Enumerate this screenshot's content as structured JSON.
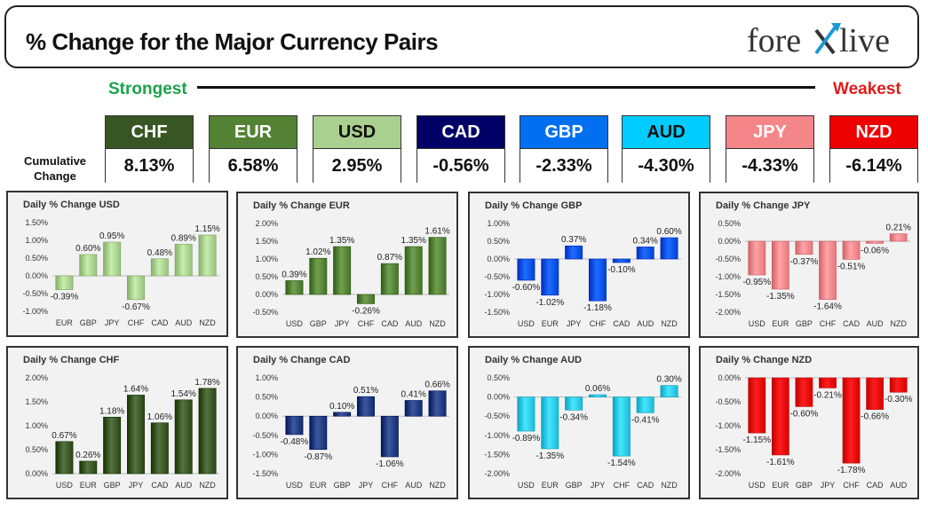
{
  "header": {
    "title": "% Change for the Major Currency Pairs",
    "logo_text_left": "fore",
    "logo_text_right": "live"
  },
  "ranking": {
    "strongest_label": "Strongest",
    "weakest_label": "Weakest",
    "cumulative_label_line1": "Cumulative",
    "cumulative_label_line2": "Change",
    "currencies": [
      {
        "code": "CHF",
        "value": "8.13%",
        "color": "#375623",
        "text": "#ffffff"
      },
      {
        "code": "EUR",
        "value": "6.58%",
        "color": "#548235",
        "text": "#ffffff"
      },
      {
        "code": "USD",
        "value": "2.95%",
        "color": "#a9d08e",
        "text": "#111111"
      },
      {
        "code": "CAD",
        "value": "-0.56%",
        "color": "#000066",
        "text": "#ffffff"
      },
      {
        "code": "GBP",
        "value": "-2.33%",
        "color": "#0070f0",
        "text": "#ffffff"
      },
      {
        "code": "AUD",
        "value": "-4.30%",
        "color": "#00ccff",
        "text": "#111111"
      },
      {
        "code": "JPY",
        "value": "-4.33%",
        "color": "#f4868a",
        "text": "#ffffff"
      },
      {
        "code": "NZD",
        "value": "-6.14%",
        "color": "#ee0000",
        "text": "#ffffff"
      }
    ]
  },
  "chart_data": [
    {
      "type": "bar",
      "title": "Daily % Change USD",
      "categories": [
        "EUR",
        "GBP",
        "JPY",
        "CHF",
        "CAD",
        "AUD",
        "NZD"
      ],
      "values": [
        -0.39,
        0.6,
        0.95,
        -0.67,
        0.48,
        0.89,
        1.15
      ],
      "labels": [
        "-0.39%",
        "0.60%",
        "0.95%",
        "-0.67%",
        "0.48%",
        "0.89%",
        "1.15%"
      ],
      "ylim": [
        -1.0,
        1.5
      ],
      "yticks": [
        -1.0,
        -0.5,
        0,
        0.5,
        1.0,
        1.5
      ],
      "yticklabels": [
        "-1.00%",
        "-0.50%",
        "0.00%",
        "0.50%",
        "1.00%",
        "1.50%"
      ],
      "bar_color": "#a9d08e"
    },
    {
      "type": "bar",
      "title": "Daily % Change EUR",
      "categories": [
        "USD",
        "GBP",
        "JPY",
        "CHF",
        "CAD",
        "AUD",
        "NZD"
      ],
      "values": [
        0.39,
        1.02,
        1.35,
        -0.26,
        0.87,
        1.35,
        1.61
      ],
      "labels": [
        "0.39%",
        "1.02%",
        "1.35%",
        "-0.26%",
        "0.87%",
        "1.35%",
        "1.61%"
      ],
      "ylim": [
        -0.5,
        2.0
      ],
      "yticks": [
        -0.5,
        0,
        0.5,
        1.0,
        1.5,
        2.0
      ],
      "yticklabels": [
        "-0.50%",
        "0.00%",
        "0.50%",
        "1.00%",
        "1.50%",
        "2.00%"
      ],
      "bar_color": "#548235"
    },
    {
      "type": "bar",
      "title": "Daily % Change GBP",
      "categories": [
        "USD",
        "EUR",
        "JPY",
        "CHF",
        "CAD",
        "AUD",
        "NZD"
      ],
      "values": [
        -0.6,
        -1.02,
        0.37,
        -1.18,
        -0.1,
        0.34,
        0.6
      ],
      "labels": [
        "-0.60%",
        "-1.02%",
        "0.37%",
        "-1.18%",
        "-0.10%",
        "0.34%",
        "0.60%"
      ],
      "ylim": [
        -1.5,
        1.0
      ],
      "yticks": [
        -1.5,
        -1.0,
        -0.5,
        0,
        0.5,
        1.0
      ],
      "yticklabels": [
        "-1.50%",
        "-1.00%",
        "-0.50%",
        "0.00%",
        "0.50%",
        "1.00%"
      ],
      "bar_color": "#0050e6"
    },
    {
      "type": "bar",
      "title": "Daily % Change JPY",
      "categories": [
        "USD",
        "EUR",
        "GBP",
        "CHF",
        "CAD",
        "AUD",
        "NZD"
      ],
      "values": [
        -0.95,
        -1.35,
        -0.37,
        -1.64,
        -0.51,
        -0.06,
        0.21
      ],
      "labels": [
        "-0.95%",
        "-1.35%",
        "-0.37%",
        "-1.64%",
        "-0.51%",
        "-0.06%",
        "0.21%"
      ],
      "ylim": [
        -2.0,
        0.5
      ],
      "yticks": [
        -2.0,
        -1.5,
        -1.0,
        -0.5,
        0,
        0.5
      ],
      "yticklabels": [
        "-2.00%",
        "-1.50%",
        "-1.00%",
        "-0.50%",
        "0.00%",
        "0.50%"
      ],
      "bar_color": "#f4868a"
    },
    {
      "type": "bar",
      "title": "Daily % Change CHF",
      "categories": [
        "USD",
        "EUR",
        "GBP",
        "JPY",
        "CAD",
        "AUD",
        "NZD"
      ],
      "values": [
        0.67,
        0.26,
        1.18,
        1.64,
        1.06,
        1.54,
        1.78
      ],
      "labels": [
        "0.67%",
        "0.26%",
        "1.18%",
        "1.64%",
        "1.06%",
        "1.54%",
        "1.78%"
      ],
      "ylim": [
        0,
        2.0
      ],
      "yticks": [
        0,
        0.5,
        1.0,
        1.5,
        2.0
      ],
      "yticklabels": [
        "0.00%",
        "0.50%",
        "1.00%",
        "1.50%",
        "2.00%"
      ],
      "bar_color": "#375623"
    },
    {
      "type": "bar",
      "title": "Daily % Change CAD",
      "categories": [
        "USD",
        "EUR",
        "GBP",
        "JPY",
        "CHF",
        "AUD",
        "NZD"
      ],
      "values": [
        -0.48,
        -0.87,
        0.1,
        0.51,
        -1.06,
        0.41,
        0.66
      ],
      "labels": [
        "-0.48%",
        "-0.87%",
        "0.10%",
        "0.51%",
        "-1.06%",
        "0.41%",
        "0.66%"
      ],
      "ylim": [
        -1.5,
        1.0
      ],
      "yticks": [
        -1.5,
        -1.0,
        -0.5,
        0,
        0.5,
        1.0
      ],
      "yticklabels": [
        "-1.50%",
        "-1.00%",
        "-0.50%",
        "0.00%",
        "0.50%",
        "1.00%"
      ],
      "bar_color": "#1f3a80"
    },
    {
      "type": "bar",
      "title": "Daily % Change AUD",
      "categories": [
        "USD",
        "EUR",
        "GBP",
        "JPY",
        "CHF",
        "CAD",
        "NZD"
      ],
      "values": [
        -0.89,
        -1.35,
        -0.34,
        0.06,
        -1.54,
        -0.41,
        0.3
      ],
      "labels": [
        "-0.89%",
        "-1.35%",
        "-0.34%",
        "0.06%",
        "-1.54%",
        "-0.41%",
        "0.30%"
      ],
      "ylim": [
        -2.0,
        0.5
      ],
      "yticks": [
        -2.0,
        -1.5,
        -1.0,
        -0.5,
        0,
        0.5
      ],
      "yticklabels": [
        "-2.00%",
        "-1.50%",
        "-1.00%",
        "-0.50%",
        "0.00%",
        "0.50%"
      ],
      "bar_color": "#2bc8e6"
    },
    {
      "type": "bar",
      "title": "Daily % Change NZD",
      "categories": [
        "USD",
        "EUR",
        "GBP",
        "JPY",
        "CHF",
        "CAD",
        "AUD"
      ],
      "values": [
        -1.15,
        -1.61,
        -0.6,
        -0.21,
        -1.78,
        -0.66,
        -0.3
      ],
      "labels": [
        "-1.15%",
        "-1.61%",
        "-0.60%",
        "-0.21%",
        "-1.78%",
        "-0.66%",
        "-0.30%"
      ],
      "ylim": [
        -2.0,
        0
      ],
      "yticks": [
        -2.0,
        -1.5,
        -1.0,
        -0.5,
        0
      ],
      "yticklabels": [
        "-2.00%",
        "-1.50%",
        "-1.00%",
        "-0.50%",
        "0.00%"
      ],
      "bar_color": "#e60000"
    }
  ]
}
